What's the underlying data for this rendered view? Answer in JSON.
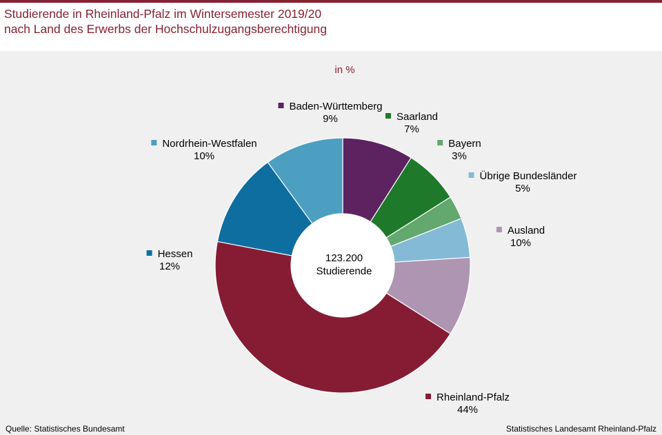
{
  "header": {
    "title_line1": "Studierende in Rheinland-Pfalz im Wintersemester 2019/20",
    "title_line2": "nach Land des Erwerbs der Hochschulzugangsberechtigung"
  },
  "footer": {
    "source": "Quelle: Statistisches Bundesamt",
    "publisher": "Statistisches Landesamt Rheinland-Pfalz"
  },
  "colors": {
    "brand": "#862232",
    "panel_background": "#f0f0f0"
  },
  "chart_data": {
    "type": "pie",
    "subtype": "donut",
    "unit_label": "in %",
    "center_value": "123.200",
    "center_label": "Studierende",
    "segments": [
      {
        "name": "Baden-Württemberg",
        "value": 9,
        "value_label": "9%",
        "color": "#5c2360"
      },
      {
        "name": "Saarland",
        "value": 7,
        "value_label": "7%",
        "color": "#1e7a2a"
      },
      {
        "name": "Bayern",
        "value": 3,
        "value_label": "3%",
        "color": "#63a86e"
      },
      {
        "name": "Übrige Bundesländer",
        "value": 5,
        "value_label": "5%",
        "color": "#84bad6"
      },
      {
        "name": "Ausland",
        "value": 10,
        "value_label": "10%",
        "color": "#ae95b2"
      },
      {
        "name": "Rheinland-Pfalz",
        "value": 44,
        "value_label": "44%",
        "color": "#861c33"
      },
      {
        "name": "Hessen",
        "value": 12,
        "value_label": "12%",
        "color": "#0e6e9f"
      },
      {
        "name": "Nordrhein-Westfalen",
        "value": 10,
        "value_label": "10%",
        "color": "#4d9fc2"
      }
    ]
  }
}
